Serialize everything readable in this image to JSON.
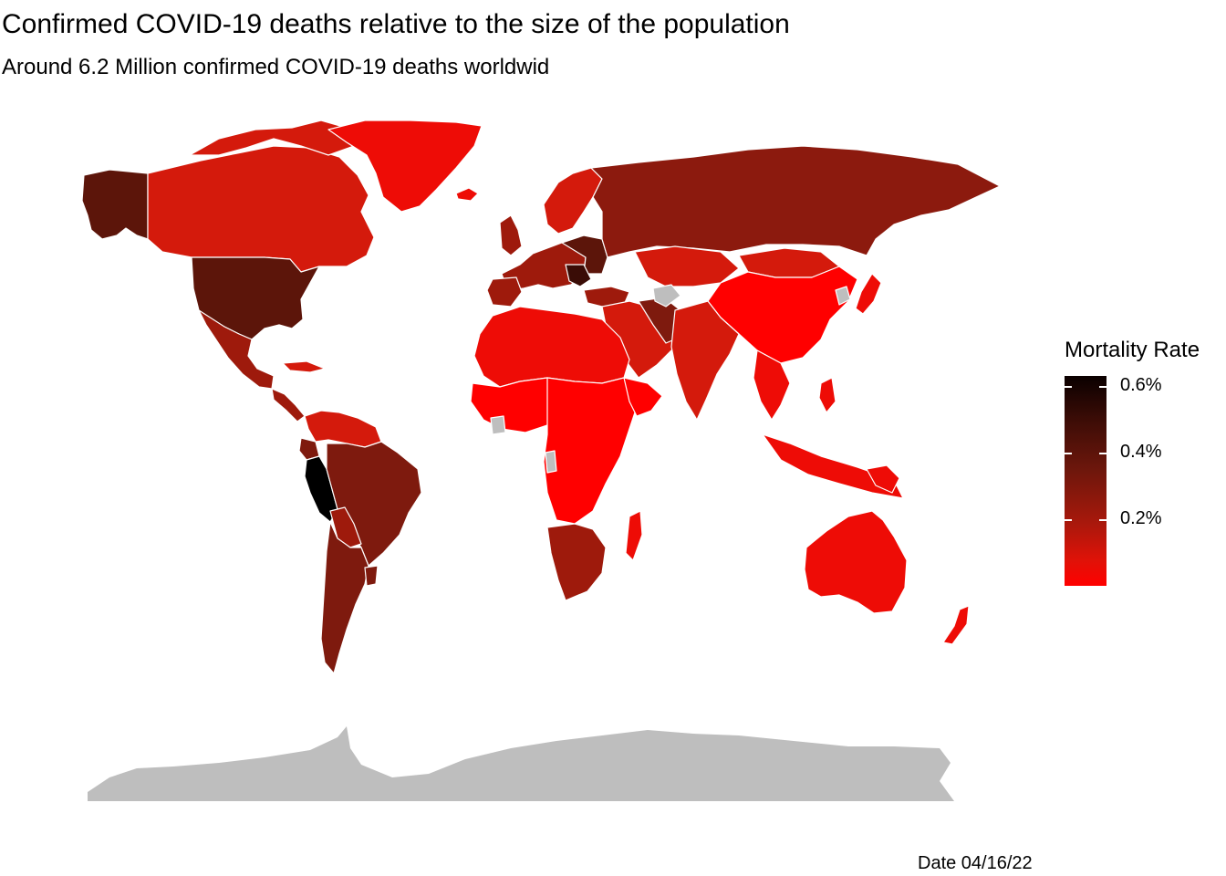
{
  "title": "Confirmed COVID-19 deaths relative to the size of the population",
  "subtitle": "Around 6.2 Million confirmed COVID-19 deaths worldwid",
  "caption": "Date 04/16/22",
  "legend": {
    "title": "Mortality Rate",
    "labels": [
      "0.6%",
      "0.4%",
      "0.2%"
    ],
    "scale": {
      "min_color": "#ff0000",
      "max_color": "#0a0000",
      "values": [
        0.6,
        0.4,
        0.2
      ]
    }
  },
  "colors": {
    "no_data": "#bebebe",
    "very_low": "#ff0000",
    "low": "#ee0c06",
    "mid_low": "#d41a0c",
    "mid": "#9e1a0c",
    "mid_high": "#7e1a0e",
    "high": "#5c150a",
    "very_high": "#000000",
    "border": "#ffffff"
  }
}
